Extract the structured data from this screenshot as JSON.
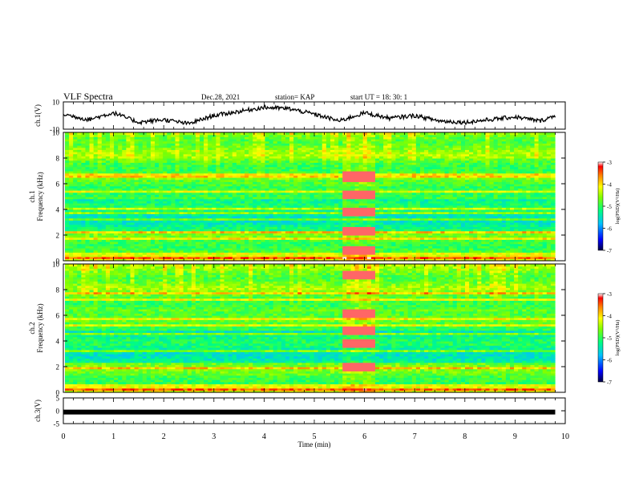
{
  "header": {
    "title": "VLF Spectra",
    "date": "Dec.28, 2021",
    "station": "station= KAP",
    "start": "start  UT =   18: 30: 1"
  },
  "chart_data": [
    {
      "type": "line",
      "ylabel": "ch.1(V)",
      "ylim": [
        -10,
        10
      ],
      "yticks": [
        "10",
        "-10"
      ],
      "xlim": [
        0,
        10
      ],
      "x": [
        0,
        0.5,
        1,
        1.5,
        2,
        2.5,
        3,
        3.5,
        4,
        4.5,
        5,
        5.5,
        6,
        6.5,
        7,
        7.5,
        8,
        8.5,
        9,
        9.5,
        9.8
      ],
      "y": [
        1,
        -3,
        2,
        -5,
        -3,
        -6,
        0,
        3,
        6,
        5,
        1,
        -4,
        2,
        -2,
        0,
        -4,
        -5,
        -3,
        -1,
        -4,
        0
      ]
    },
    {
      "type": "heatmap",
      "ylabel": "ch.1\nFrequency (kHz)",
      "ylim": [
        0,
        10
      ],
      "yticks": [
        "0",
        "2",
        "4",
        "6",
        "8",
        "10"
      ],
      "colorbar": {
        "label": "log(PSD)(V²/Hz)",
        "ticks": [
          "-3",
          "-4",
          "-5",
          "-6",
          "-7"
        ],
        "range": [
          -7,
          -3
        ]
      },
      "features": [
        {
          "type": "bright-band",
          "t_start": 5.5,
          "t_end": 6.15,
          "freqs_khz": [
            0.8,
            2.4,
            3.8,
            5.2,
            6.6
          ]
        }
      ]
    },
    {
      "type": "heatmap",
      "ylabel": "ch.2\nFrequency (kHz)",
      "ylim": [
        0,
        10
      ],
      "yticks": [
        "0",
        "2",
        "4",
        "6",
        "8",
        "10"
      ],
      "colorbar": {
        "label": "log(PSD)(V²/Hz)",
        "ticks": [
          "-3",
          "-4",
          "-5",
          "-6",
          "-7"
        ],
        "range": [
          -7,
          -3
        ]
      },
      "features": [
        {
          "type": "bright-band",
          "t_start": 5.5,
          "t_end": 6.15,
          "freqs_khz": [
            2.0,
            3.8,
            4.8,
            6.2,
            9.2
          ]
        }
      ]
    },
    {
      "type": "line",
      "ylabel": "ch.3(V)",
      "ylim": [
        -5,
        5
      ],
      "yticks": [
        "5",
        "0",
        "-5"
      ],
      "xlim": [
        0,
        10
      ],
      "x": [
        0,
        9.8
      ],
      "y": [
        -0.5,
        -0.5
      ]
    }
  ],
  "xaxis": {
    "label": "Time (min)",
    "ticks": [
      "0",
      "1",
      "2",
      "3",
      "4",
      "5",
      "6",
      "7",
      "8",
      "9",
      "10"
    ]
  }
}
